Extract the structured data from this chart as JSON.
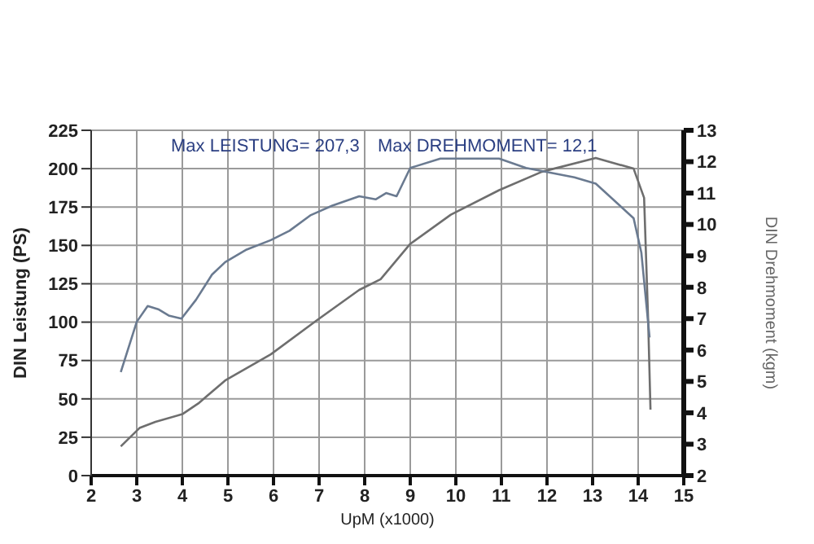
{
  "chart_data": {
    "type": "line",
    "xlabel": "UpM (x1000)",
    "ylabel": "DIN Leistung (PS)",
    "y2label": "DIN Drehmoment (kgm)",
    "xlim": [
      2,
      15
    ],
    "xticks": [
      2,
      3,
      4,
      5,
      6,
      7,
      8,
      9,
      10,
      11,
      12,
      13,
      14,
      15
    ],
    "ylim": [
      0,
      225
    ],
    "yticks": [
      0,
      25,
      50,
      75,
      100,
      125,
      150,
      175,
      200,
      225
    ],
    "y2lim": [
      2,
      13
    ],
    "y2ticks": [
      2,
      3,
      4,
      5,
      6,
      7,
      8,
      9,
      10,
      11,
      12,
      13
    ],
    "grid": true,
    "marker": "none",
    "line_style": "solid",
    "annotations": [
      "Max LEISTUNG= 207,3",
      "Max DREHMOMENT= 12,1"
    ],
    "series": [
      {
        "color": "#6e6e6e",
        "x": [
          2.65,
          3.06,
          3.41,
          4.0,
          4.35,
          4.94,
          5.94,
          6.94,
          7.88,
          8.35,
          9.0,
          9.89,
          10.95,
          11.89,
          13.07,
          13.9,
          14.13,
          14.22,
          14.27
        ],
        "values": [
          19,
          31,
          35,
          40,
          47,
          62,
          79,
          101,
          121,
          128,
          151,
          170,
          186,
          198,
          207,
          200,
          181,
          100,
          43
        ]
      },
      {
        "color": "#6a7a90",
        "axis": "y2",
        "x": [
          2.65,
          3.0,
          3.24,
          3.47,
          3.7,
          3.98,
          4.3,
          4.65,
          4.94,
          5.41,
          5.94,
          6.35,
          6.82,
          7.29,
          7.88,
          8.24,
          8.47,
          8.7,
          9.0,
          9.66,
          10.36,
          10.95,
          11.54,
          12.6,
          13.07,
          13.9,
          14.07,
          14.25
        ],
        "values": [
          5.3,
          6.9,
          7.4,
          7.3,
          7.1,
          7.0,
          7.6,
          8.4,
          8.8,
          9.2,
          9.5,
          9.8,
          10.3,
          10.6,
          10.9,
          10.8,
          11.0,
          10.9,
          11.8,
          12.1,
          12.1,
          12.1,
          11.8,
          11.5,
          11.3,
          10.2,
          9.1,
          6.4
        ]
      }
    ]
  }
}
